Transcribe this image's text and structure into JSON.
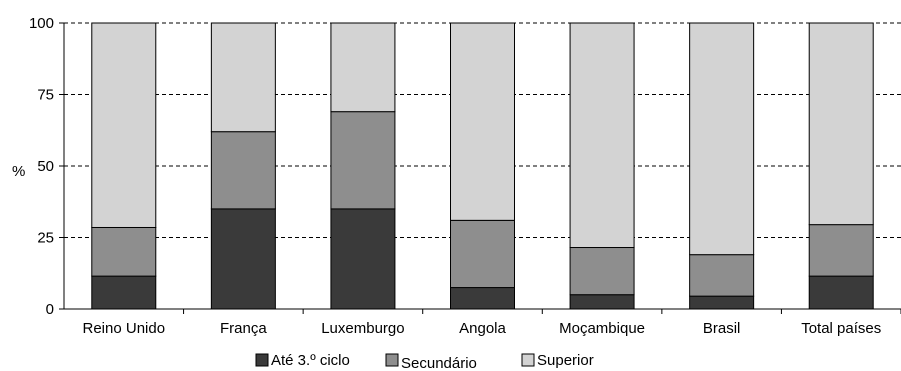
{
  "chart_data": {
    "type": "bar",
    "stacked": true,
    "percent": true,
    "title": "",
    "xlabel": "",
    "ylabel": "%",
    "ylim": [
      0,
      100
    ],
    "yticks": [
      0,
      25,
      50,
      75,
      100
    ],
    "grid": true,
    "legend_position": "bottom",
    "categories": [
      "Reino Unido",
      "França",
      "Luxemburgo",
      "Angola",
      "Moçambique",
      "Brasil",
      "Total países"
    ],
    "series": [
      {
        "name": "Até 3.º ciclo",
        "color": "#3a3a3a",
        "values": [
          11.5,
          35,
          35,
          7.5,
          5,
          4.5,
          11.5
        ]
      },
      {
        "name": "Secundário",
        "color": "#8e8e8e",
        "values": [
          17,
          27,
          34,
          23.5,
          16.5,
          14.5,
          18
        ]
      },
      {
        "name": "Superior",
        "color": "#d3d3d3",
        "values": [
          71.5,
          38,
          31,
          69,
          78.5,
          81,
          70.5
        ]
      }
    ]
  }
}
